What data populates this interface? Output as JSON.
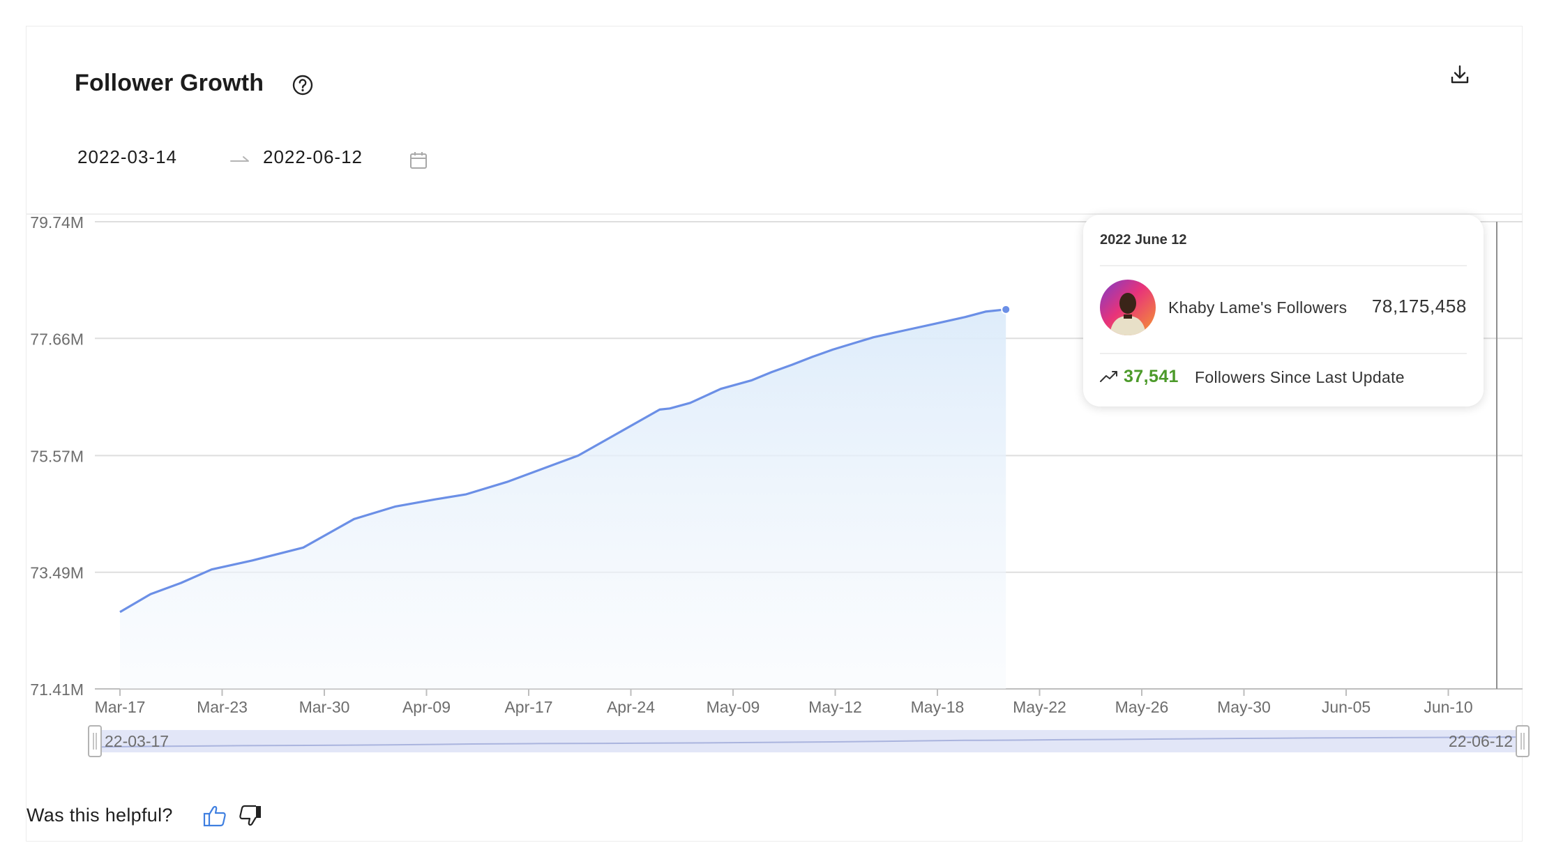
{
  "header": {
    "title": "Follower Growth",
    "help_icon": "question-circle-icon",
    "download_icon": "download-icon"
  },
  "date_range": {
    "start": "2022-03-14",
    "end": "2022-06-12",
    "separator_icon": "arrow-right-icon",
    "calendar_icon": "calendar-icon"
  },
  "tooltip": {
    "date": "2022 June 12",
    "series_label": "Khaby Lame's Followers",
    "value": "78,175,458",
    "delta": "37,541",
    "delta_label": "Followers Since Last Update",
    "avatar_icon": "avatar-photo",
    "trend_icon": "trend-up-icon"
  },
  "slider": {
    "start_label": "22-03-17",
    "end_label": "22-06-12"
  },
  "feedback": {
    "question": "Was this helpful?",
    "up_icon": "thumbs-up-icon",
    "down_icon": "thumbs-down-icon"
  },
  "colors": {
    "line": "#6b8fe6",
    "area_top": "#dcebfa",
    "positive": "#4c9a2a",
    "slider_fill": "#e2e6f7"
  },
  "chart_data": {
    "type": "area",
    "title": "",
    "xlabel": "",
    "ylabel": "",
    "ylim": [
      71410000,
      79740000
    ],
    "yticks": [
      "79.74M",
      "77.66M",
      "75.57M",
      "73.49M",
      "71.41M"
    ],
    "ytick_values": [
      79740000,
      77660000,
      75570000,
      73490000,
      71410000
    ],
    "xticks": [
      "Mar-17",
      "Mar-23",
      "Mar-30",
      "Apr-09",
      "Apr-17",
      "Apr-24",
      "May-09",
      "May-12",
      "May-18",
      "May-22",
      "May-26",
      "May-30",
      "Jun-05",
      "Jun-10"
    ],
    "grid": true,
    "legend": "none",
    "x": [
      "2022-03-17",
      "2022-03-20",
      "2022-03-23",
      "2022-03-26",
      "2022-03-30",
      "2022-04-04",
      "2022-04-09",
      "2022-04-13",
      "2022-04-17",
      "2022-04-20",
      "2022-04-24",
      "2022-05-01",
      "2022-05-09",
      "2022-05-10",
      "2022-05-12",
      "2022-05-15",
      "2022-05-18",
      "2022-05-20",
      "2022-05-22",
      "2022-05-24",
      "2022-05-26",
      "2022-05-28",
      "2022-05-30",
      "2022-06-02",
      "2022-06-05",
      "2022-06-08",
      "2022-06-10",
      "2022-06-12"
    ],
    "series": [
      {
        "values": [
          72780000,
          73100000,
          73300000,
          73540000,
          73700000,
          73930000,
          74440000,
          74660000,
          74790000,
          74880000,
          75100000,
          75570000,
          76390000,
          76410000,
          76510000,
          76760000,
          76910000,
          77060000,
          77190000,
          77330000,
          77460000,
          77570000,
          77680000,
          77800000,
          77920000,
          78040000,
          78138000,
          78175458
        ]
      }
    ]
  }
}
